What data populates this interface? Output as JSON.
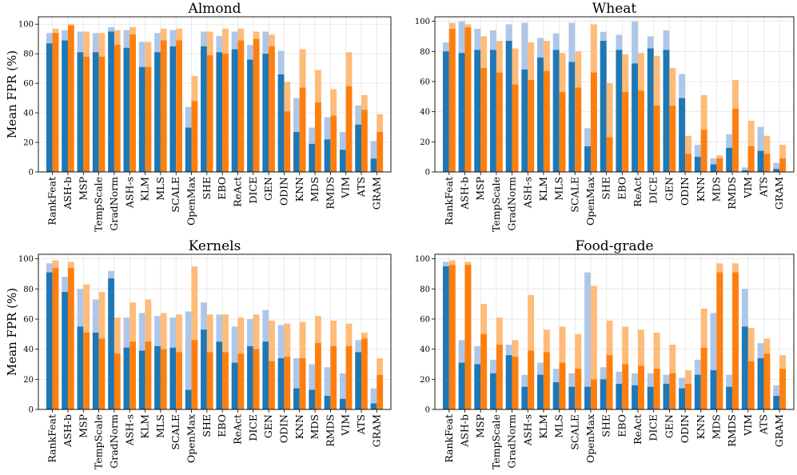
{
  "figure": {
    "colors": {
      "blue_light": "#aec7e8",
      "blue_dark": "#1f77b4",
      "orange_light": "#ffbb78",
      "orange_dark": "#ff7f0e"
    }
  },
  "chart_data": [
    {
      "type": "bar",
      "title": "Almond",
      "xlabel": "",
      "ylabel": "Mean FPR (%)",
      "ylim": [
        0,
        105
      ],
      "yticks": [
        "0",
        "20",
        "40",
        "60",
        "80",
        "100"
      ],
      "categories": [
        "RankFeat",
        "ASH-b",
        "MSP",
        "TempScale",
        "GradNorm",
        "ASH-s",
        "KLM",
        "MLS",
        "SCALE",
        "OpenMax",
        "SHE",
        "EBO",
        "ReAct",
        "DICE",
        "GEN",
        "ODIN",
        "KNN",
        "MDS",
        "RMDS",
        "VIM",
        "ATS",
        "GRAM"
      ],
      "series": [
        {
          "name": "blue (light)",
          "values": [
            94,
            96,
            95,
            94,
            98,
            96,
            88,
            94,
            96,
            44,
            95,
            92,
            95,
            86,
            95,
            82,
            50,
            30,
            37,
            27,
            45,
            21
          ]
        },
        {
          "name": "blue (dark)",
          "values": [
            87,
            89,
            81,
            81,
            95,
            84,
            71,
            81,
            85,
            30,
            85,
            81,
            83,
            76,
            80,
            66,
            27,
            19,
            22,
            15,
            32,
            9
          ]
        },
        {
          "name": "orange (light)",
          "values": [
            97,
            100,
            95,
            94,
            96,
            98,
            88,
            97,
            97,
            65,
            95,
            97,
            97,
            95,
            93,
            61,
            83,
            69,
            56,
            81,
            52,
            39
          ]
        },
        {
          "name": "orange (dark)",
          "values": [
            94,
            99,
            78,
            78,
            86,
            93,
            71,
            89,
            89,
            48,
            79,
            80,
            89,
            90,
            85,
            41,
            57,
            47,
            38,
            58,
            42,
            27
          ]
        }
      ]
    },
    {
      "type": "bar",
      "title": "Wheat",
      "xlabel": "",
      "ylabel": "",
      "ylim": [
        0,
        103
      ],
      "yticks": [
        "0",
        "20",
        "40",
        "60",
        "80",
        "100"
      ],
      "categories": [
        "RankFeat",
        "ASH-b",
        "MSP",
        "TempScale",
        "GradNorm",
        "ASH-s",
        "KLM",
        "MLS",
        "SCALE",
        "OpenMax",
        "SHE",
        "EBO",
        "ReAct",
        "DICE",
        "GEN",
        "ODIN",
        "KNN",
        "MDS",
        "RMDS",
        "VIM",
        "ATS",
        "GRAM"
      ],
      "series": [
        {
          "name": "blue (light)",
          "values": [
            86,
            100,
            95,
            94,
            98,
            99,
            89,
            92,
            99,
            29,
            93,
            91,
            100,
            90,
            94,
            65,
            18,
            9,
            25,
            3,
            30,
            6
          ]
        },
        {
          "name": "blue (dark)",
          "values": [
            80,
            79,
            81,
            81,
            87,
            68,
            76,
            81,
            73,
            17,
            87,
            81,
            72,
            82,
            81,
            49,
            10,
            5,
            16,
            1,
            14,
            2
          ]
        },
        {
          "name": "orange (light)",
          "values": [
            99,
            98,
            90,
            87,
            82,
            86,
            87,
            79,
            80,
            98,
            59,
            78,
            79,
            77,
            69,
            24,
            51,
            11,
            61,
            34,
            24,
            18
          ]
        },
        {
          "name": "orange (dark)",
          "values": [
            95,
            96,
            69,
            66,
            58,
            61,
            67,
            53,
            56,
            66,
            23,
            53,
            54,
            44,
            44,
            12,
            28,
            9,
            42,
            17,
            12,
            9
          ]
        }
      ]
    },
    {
      "type": "bar",
      "title": "Kernels",
      "xlabel": "",
      "ylabel": "Mean FPR (%)",
      "ylim": [
        0,
        103
      ],
      "yticks": [
        "0",
        "20",
        "40",
        "60",
        "80",
        "100"
      ],
      "categories": [
        "RankFeat",
        "ASH-b",
        "MSP",
        "TempScale",
        "GradNorm",
        "ASH-s",
        "KLM",
        "MLS",
        "SCALE",
        "OpenMax",
        "SHE",
        "EBO",
        "ReAct",
        "DICE",
        "GEN",
        "ODIN",
        "KNN",
        "MDS",
        "RMDS",
        "VIM",
        "ATS",
        "GRAM"
      ],
      "series": [
        {
          "name": "blue (light)",
          "values": [
            97,
            88,
            80,
            73,
            92,
            61,
            64,
            62,
            61,
            65,
            71,
            63,
            55,
            60,
            66,
            56,
            34,
            30,
            28,
            24,
            46,
            14
          ]
        },
        {
          "name": "blue (dark)",
          "values": [
            91,
            78,
            55,
            51,
            87,
            41,
            39,
            42,
            41,
            13,
            53,
            45,
            31,
            42,
            45,
            34,
            14,
            13,
            9,
            7,
            38,
            4
          ]
        },
        {
          "name": "orange (light)",
          "values": [
            99,
            98,
            83,
            78,
            61,
            71,
            73,
            64,
            63,
            95,
            63,
            63,
            61,
            63,
            59,
            57,
            58,
            62,
            59,
            57,
            51,
            34
          ]
        },
        {
          "name": "orange (dark)",
          "values": [
            94,
            94,
            51,
            47,
            37,
            45,
            45,
            40,
            38,
            46,
            38,
            38,
            37,
            40,
            32,
            35,
            34,
            44,
            42,
            42,
            47,
            23
          ]
        }
      ]
    },
    {
      "type": "bar",
      "title": "Food-grade",
      "xlabel": "",
      "ylabel": "",
      "ylim": [
        0,
        103
      ],
      "yticks": [
        "0",
        "20",
        "40",
        "60",
        "80",
        "100"
      ],
      "categories": [
        "RankFeat",
        "ASH-b",
        "MSP",
        "TempScale",
        "GradNorm",
        "ASH-s",
        "KLM",
        "MLS",
        "SCALE",
        "OpenMax",
        "SHE",
        "EBO",
        "ReAct",
        "DICE",
        "GEN",
        "ODIN",
        "KNN",
        "MDS",
        "RMDS",
        "VIM",
        "ATS",
        "GRAM"
      ],
      "series": [
        {
          "name": "blue (light)",
          "values": [
            98,
            46,
            42,
            33,
            43,
            23,
            31,
            27,
            24,
            91,
            28,
            25,
            24,
            24,
            23,
            21,
            33,
            64,
            23,
            80,
            44,
            16
          ]
        },
        {
          "name": "blue (dark)",
          "values": [
            95,
            31,
            30,
            24,
            36,
            15,
            23,
            18,
            15,
            15,
            20,
            17,
            16,
            15,
            17,
            14,
            23,
            26,
            15,
            55,
            34,
            9
          ]
        },
        {
          "name": "orange (light)",
          "values": [
            99,
            98,
            70,
            61,
            46,
            76,
            53,
            55,
            50,
            82,
            59,
            55,
            53,
            51,
            43,
            26,
            67,
            97,
            97,
            54,
            47,
            36
          ]
        },
        {
          "name": "orange (dark)",
          "values": [
            96,
            96,
            50,
            43,
            35,
            39,
            38,
            31,
            27,
            20,
            36,
            30,
            29,
            27,
            24,
            17,
            41,
            91,
            91,
            32,
            37,
            27
          ]
        }
      ]
    }
  ]
}
